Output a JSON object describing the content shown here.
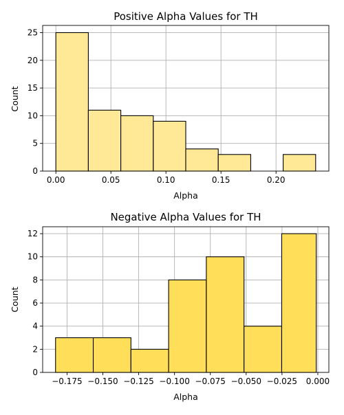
{
  "chart_data": [
    {
      "type": "bar",
      "title": "Positive Alpha Values for TH",
      "xlabel": "Alpha",
      "ylabel": "Count",
      "bar_color": "#ffe896",
      "bin_edges": [
        0.0,
        0.0295,
        0.059,
        0.0885,
        0.118,
        0.1475,
        0.177,
        0.2065,
        0.236
      ],
      "values": [
        25,
        11,
        10,
        9,
        4,
        3,
        0,
        3
      ],
      "xlim": [
        -0.012,
        0.248
      ],
      "ylim": [
        0,
        26.3
      ],
      "xticks": [
        0.0,
        0.05,
        0.1,
        0.15,
        0.2
      ],
      "xtick_labels": [
        "0.00",
        "0.05",
        "0.10",
        "0.15",
        "0.20"
      ],
      "yticks": [
        0,
        5,
        10,
        15,
        20,
        25
      ],
      "ytick_labels": [
        "0",
        "5",
        "10",
        "15",
        "20",
        "25"
      ],
      "grid": true
    },
    {
      "type": "bar",
      "title": "Negative Alpha Values for TH",
      "xlabel": "Alpha",
      "ylabel": "Count",
      "bar_color": "#ffdf5a",
      "bin_edges": [
        -0.183,
        -0.1567,
        -0.1304,
        -0.1041,
        -0.0778,
        -0.0515,
        -0.0252,
        -0.0011
      ],
      "values": [
        3,
        3,
        2,
        8,
        10,
        4,
        12
      ],
      "xlim": [
        -0.192,
        0.0077
      ],
      "ylim": [
        0,
        12.6
      ],
      "xticks": [
        -0.175,
        -0.15,
        -0.125,
        -0.1,
        -0.075,
        -0.05,
        -0.025,
        0.0
      ],
      "xtick_labels": [
        "−0.175",
        "−0.150",
        "−0.125",
        "−0.100",
        "−0.075",
        "−0.050",
        "−0.025",
        "0.000"
      ],
      "yticks": [
        0,
        2,
        4,
        6,
        8,
        10,
        12
      ],
      "ytick_labels": [
        "0",
        "2",
        "4",
        "6",
        "8",
        "10",
        "12"
      ],
      "grid": true
    }
  ]
}
